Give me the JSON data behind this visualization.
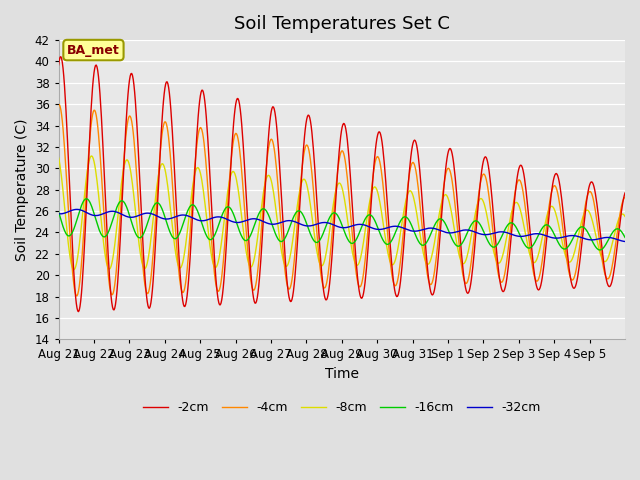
{
  "title": "Soil Temperatures Set C",
  "xlabel": "Time",
  "ylabel": "Soil Temperature (C)",
  "ylim": [
    14,
    42
  ],
  "yticks": [
    14,
    16,
    18,
    20,
    22,
    24,
    26,
    28,
    30,
    32,
    34,
    36,
    38,
    40,
    42
  ],
  "background_color": "#e0e0e0",
  "plot_bg_color": "#e8e8e8",
  "annotation_text": "BA_met",
  "annotation_bg": "#ffff99",
  "annotation_border": "#999900",
  "colors": {
    "-2cm": "#dd0000",
    "-4cm": "#ff8800",
    "-8cm": "#dddd00",
    "-16cm": "#00cc00",
    "-32cm": "#0000cc"
  },
  "legend_labels": [
    "-2cm",
    "-4cm",
    "-8cm",
    "-16cm",
    "-32cm"
  ],
  "x_tick_labels": [
    "Aug 21",
    "Aug 22",
    "Aug 23",
    "Aug 24",
    "Aug 25",
    "Aug 26",
    "Aug 27",
    "Aug 28",
    "Aug 29",
    "Aug 30",
    "Aug 31",
    "Sep 1",
    "Sep 2",
    "Sep 3",
    "Sep 4",
    "Sep 5"
  ],
  "n_days": 16,
  "pts_per_day": 48,
  "title_fontsize": 13,
  "axis_label_fontsize": 10,
  "tick_fontsize": 8.5
}
